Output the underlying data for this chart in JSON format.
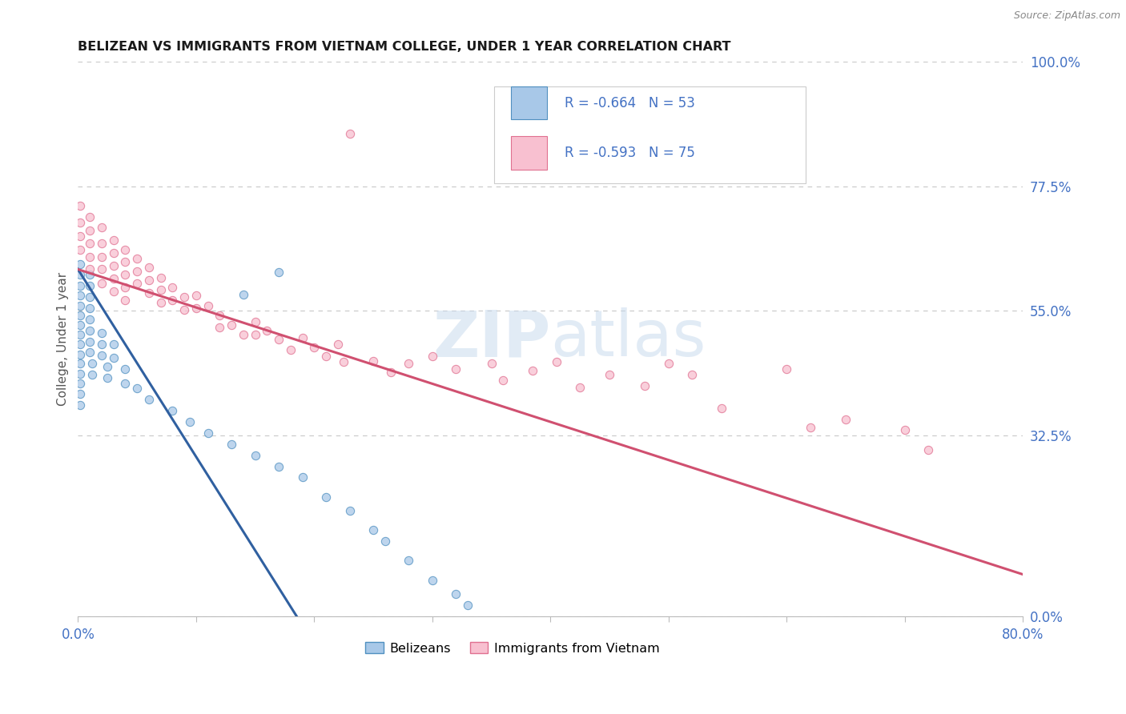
{
  "title": "BELIZEAN VS IMMIGRANTS FROM VIETNAM COLLEGE, UNDER 1 YEAR CORRELATION CHART",
  "source_text": "Source: ZipAtlas.com",
  "ylabel": "College, Under 1 year",
  "xlim": [
    0.0,
    0.8
  ],
  "ylim": [
    0.0,
    1.0
  ],
  "xticks": [
    0.0,
    0.1,
    0.2,
    0.3,
    0.4,
    0.5,
    0.6,
    0.7,
    0.8
  ],
  "yticks_right": [
    0.0,
    0.325,
    0.55,
    0.775,
    1.0
  ],
  "yticklabels_right": [
    "0.0%",
    "32.5%",
    "55.0%",
    "77.5%",
    "100.0%"
  ],
  "blue_r": "-0.664",
  "blue_n": "53",
  "pink_r": "-0.593",
  "pink_n": "75",
  "blue_fill": "#a8c8e8",
  "pink_fill": "#f8c0d0",
  "blue_edge": "#5090c0",
  "pink_edge": "#e07090",
  "blue_line_color": "#3060a0",
  "pink_line_color": "#d05070",
  "blue_scatter": [
    [
      0.002,
      0.635
    ],
    [
      0.002,
      0.615
    ],
    [
      0.002,
      0.595
    ],
    [
      0.002,
      0.578
    ],
    [
      0.002,
      0.56
    ],
    [
      0.002,
      0.542
    ],
    [
      0.002,
      0.525
    ],
    [
      0.002,
      0.508
    ],
    [
      0.002,
      0.49
    ],
    [
      0.002,
      0.472
    ],
    [
      0.002,
      0.455
    ],
    [
      0.002,
      0.437
    ],
    [
      0.002,
      0.42
    ],
    [
      0.002,
      0.4
    ],
    [
      0.002,
      0.38
    ],
    [
      0.01,
      0.615
    ],
    [
      0.01,
      0.595
    ],
    [
      0.01,
      0.575
    ],
    [
      0.01,
      0.555
    ],
    [
      0.01,
      0.535
    ],
    [
      0.01,
      0.515
    ],
    [
      0.01,
      0.495
    ],
    [
      0.01,
      0.475
    ],
    [
      0.012,
      0.455
    ],
    [
      0.012,
      0.435
    ],
    [
      0.02,
      0.51
    ],
    [
      0.02,
      0.49
    ],
    [
      0.02,
      0.47
    ],
    [
      0.025,
      0.45
    ],
    [
      0.025,
      0.43
    ],
    [
      0.03,
      0.49
    ],
    [
      0.03,
      0.465
    ],
    [
      0.04,
      0.445
    ],
    [
      0.04,
      0.42
    ],
    [
      0.05,
      0.41
    ],
    [
      0.06,
      0.39
    ],
    [
      0.08,
      0.37
    ],
    [
      0.095,
      0.35
    ],
    [
      0.11,
      0.33
    ],
    [
      0.13,
      0.31
    ],
    [
      0.15,
      0.29
    ],
    [
      0.17,
      0.27
    ],
    [
      0.14,
      0.58
    ],
    [
      0.19,
      0.25
    ],
    [
      0.21,
      0.215
    ],
    [
      0.23,
      0.19
    ],
    [
      0.25,
      0.155
    ],
    [
      0.26,
      0.135
    ],
    [
      0.28,
      0.1
    ],
    [
      0.17,
      0.62
    ],
    [
      0.3,
      0.065
    ],
    [
      0.32,
      0.04
    ],
    [
      0.33,
      0.02
    ]
  ],
  "pink_scatter": [
    [
      0.002,
      0.74
    ],
    [
      0.002,
      0.71
    ],
    [
      0.002,
      0.685
    ],
    [
      0.002,
      0.66
    ],
    [
      0.01,
      0.72
    ],
    [
      0.01,
      0.695
    ],
    [
      0.01,
      0.672
    ],
    [
      0.01,
      0.648
    ],
    [
      0.01,
      0.625
    ],
    [
      0.02,
      0.7
    ],
    [
      0.02,
      0.672
    ],
    [
      0.02,
      0.648
    ],
    [
      0.02,
      0.625
    ],
    [
      0.02,
      0.6
    ],
    [
      0.03,
      0.678
    ],
    [
      0.03,
      0.655
    ],
    [
      0.03,
      0.632
    ],
    [
      0.03,
      0.608
    ],
    [
      0.03,
      0.585
    ],
    [
      0.04,
      0.66
    ],
    [
      0.04,
      0.638
    ],
    [
      0.04,
      0.615
    ],
    [
      0.04,
      0.592
    ],
    [
      0.04,
      0.57
    ],
    [
      0.05,
      0.645
    ],
    [
      0.05,
      0.622
    ],
    [
      0.05,
      0.6
    ],
    [
      0.06,
      0.628
    ],
    [
      0.06,
      0.605
    ],
    [
      0.06,
      0.582
    ],
    [
      0.07,
      0.61
    ],
    [
      0.07,
      0.588
    ],
    [
      0.07,
      0.565
    ],
    [
      0.08,
      0.592
    ],
    [
      0.08,
      0.57
    ],
    [
      0.09,
      0.575
    ],
    [
      0.09,
      0.552
    ],
    [
      0.1,
      0.578
    ],
    [
      0.1,
      0.555
    ],
    [
      0.11,
      0.56
    ],
    [
      0.12,
      0.542
    ],
    [
      0.12,
      0.52
    ],
    [
      0.13,
      0.525
    ],
    [
      0.14,
      0.508
    ],
    [
      0.15,
      0.53
    ],
    [
      0.15,
      0.508
    ],
    [
      0.16,
      0.515
    ],
    [
      0.17,
      0.498
    ],
    [
      0.18,
      0.48
    ],
    [
      0.19,
      0.502
    ],
    [
      0.2,
      0.485
    ],
    [
      0.21,
      0.468
    ],
    [
      0.22,
      0.49
    ],
    [
      0.225,
      0.458
    ],
    [
      0.23,
      0.87
    ],
    [
      0.25,
      0.46
    ],
    [
      0.265,
      0.44
    ],
    [
      0.28,
      0.455
    ],
    [
      0.3,
      0.468
    ],
    [
      0.32,
      0.445
    ],
    [
      0.35,
      0.455
    ],
    [
      0.36,
      0.425
    ],
    [
      0.385,
      0.442
    ],
    [
      0.405,
      0.458
    ],
    [
      0.425,
      0.412
    ],
    [
      0.45,
      0.435
    ],
    [
      0.48,
      0.415
    ],
    [
      0.5,
      0.455
    ],
    [
      0.52,
      0.435
    ],
    [
      0.545,
      0.375
    ],
    [
      0.6,
      0.445
    ],
    [
      0.62,
      0.34
    ],
    [
      0.65,
      0.355
    ],
    [
      0.7,
      0.335
    ],
    [
      0.72,
      0.3
    ]
  ],
  "blue_line": [
    [
      0.0,
      0.625
    ],
    [
      0.185,
      0.0
    ]
  ],
  "pink_line": [
    [
      0.0,
      0.625
    ],
    [
      0.8,
      0.075
    ]
  ],
  "watermark_zip": "ZIP",
  "watermark_atlas": "atlas",
  "background_color": "#ffffff",
  "grid_color": "#c8c8c8",
  "tick_label_color": "#4472c4",
  "legend_text_color": "#333333",
  "legend_r_color": "#4472c4"
}
